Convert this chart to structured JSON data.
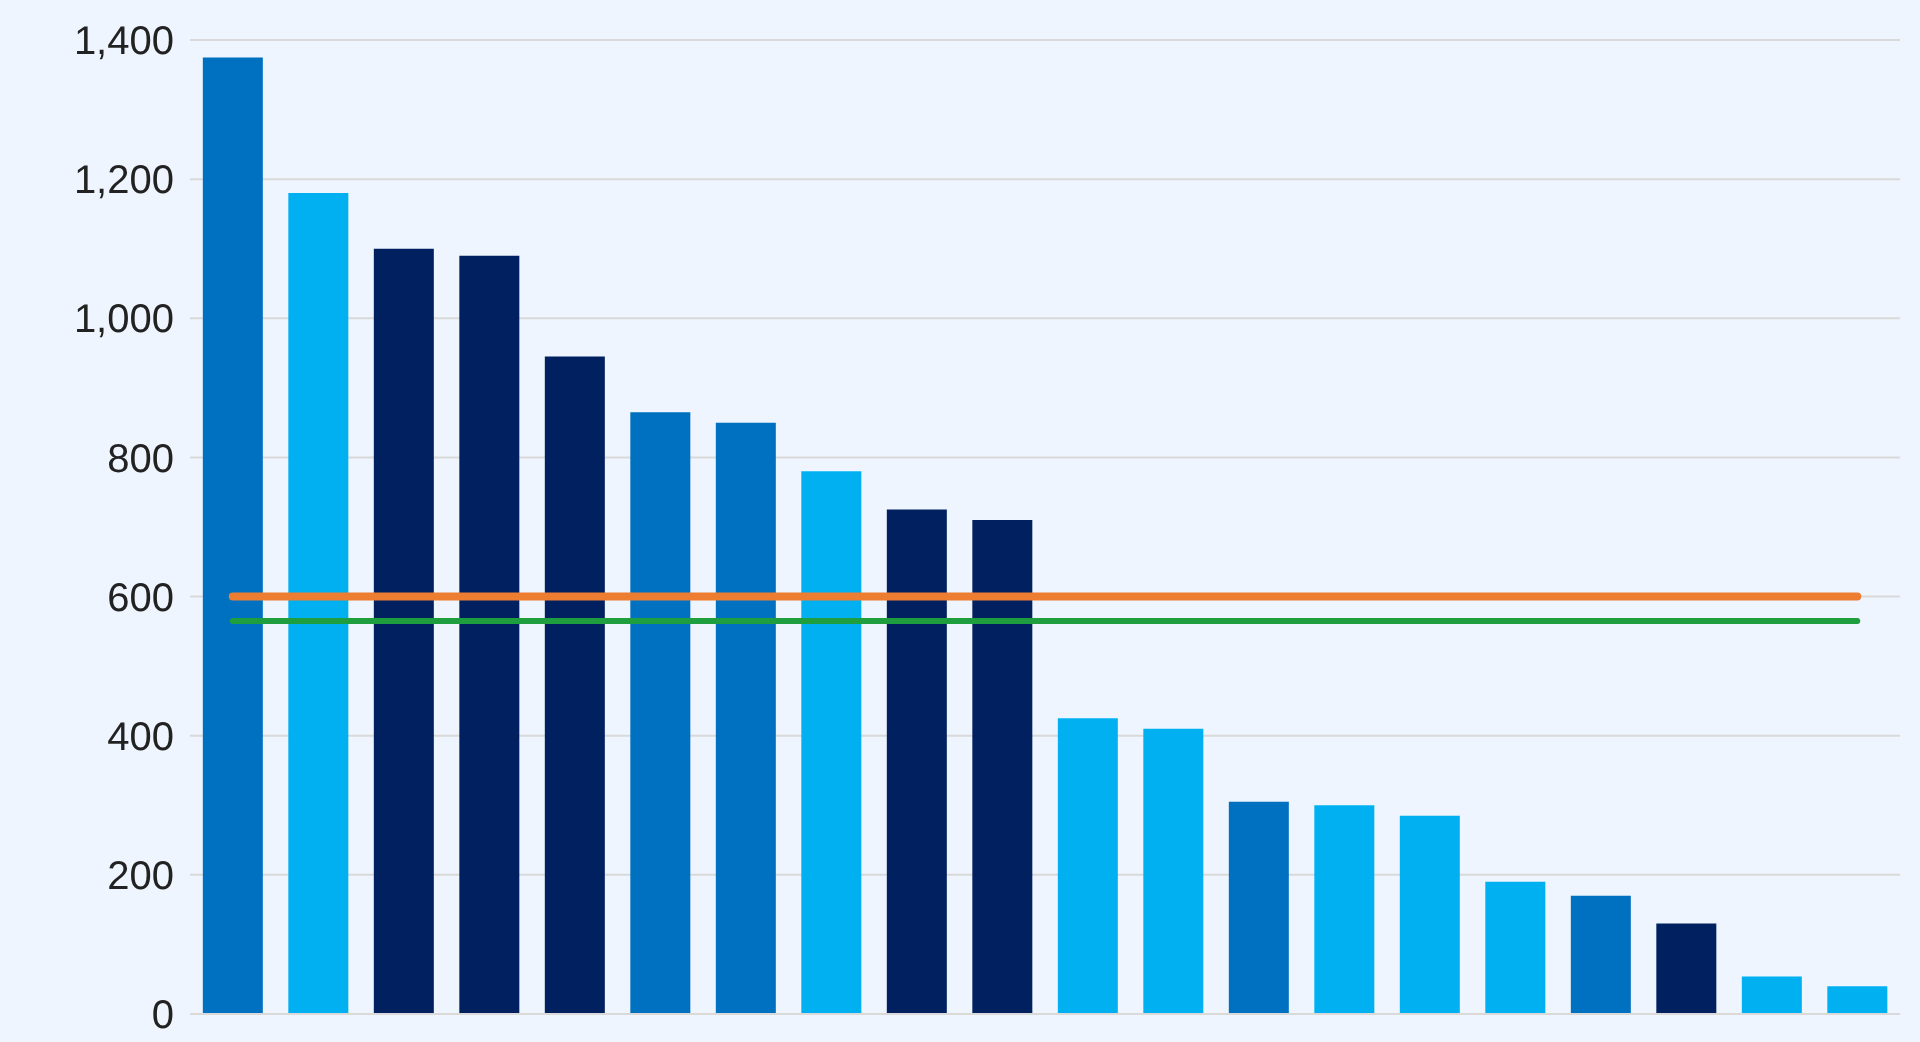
{
  "chart_data": {
    "type": "bar",
    "categories": [
      null,
      null,
      null,
      null,
      null,
      null,
      null,
      null,
      null,
      null,
      null,
      null,
      null,
      null,
      null,
      null,
      null,
      null,
      null,
      null
    ],
    "values": [
      1375,
      1180,
      1100,
      1090,
      945,
      865,
      850,
      780,
      725,
      710,
      425,
      410,
      305,
      300,
      285,
      190,
      170,
      130,
      54,
      40
    ],
    "colors": [
      "#0070c0",
      "#00b0f0",
      "#002060",
      "#002060",
      "#002060",
      "#0070c0",
      "#0070c0",
      "#00b0f0",
      "#002060",
      "#002060",
      "#00b0f0",
      "#00b0f0",
      "#0070c0",
      "#00b0f0",
      "#00b0f0",
      "#00b0f0",
      "#0070c0",
      "#002060",
      "#00b0f0",
      "#00b0f0"
    ],
    "ylim": [
      0,
      1400
    ],
    "yticks": [
      0,
      200,
      400,
      600,
      800,
      {
        "value": 1000,
        "label": "1,000"
      },
      {
        "value": 1200,
        "label": "1,200"
      },
      {
        "value": 1400,
        "label": "1,400"
      }
    ],
    "grid": "y",
    "tick_labels": "y",
    "ref_lines": [
      {
        "axis": "y",
        "value": 600,
        "color": "#ed7d31"
      },
      {
        "axis": "y",
        "value": 565,
        "color": "#1e9e3e"
      }
    ]
  }
}
